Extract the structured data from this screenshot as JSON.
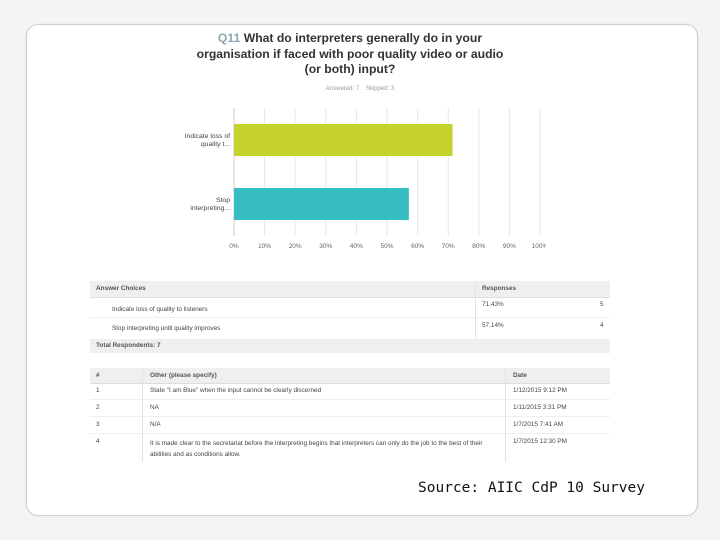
{
  "question": {
    "number": "Q11",
    "text": "What do interpreters generally do in your organisation if faced with poor quality video or audio (or both) input?",
    "answered": "Answered: 7",
    "skipped": "Skipped: 3"
  },
  "chart_data": {
    "type": "bar",
    "orientation": "horizontal",
    "categories": [
      "Indicate loss of quality t...",
      "Stop interpreting..."
    ],
    "values": [
      71.43,
      57.14
    ],
    "colors": [
      "#c6d22f",
      "#36bdc2"
    ],
    "xlim": [
      0,
      100
    ],
    "xticks": [
      "0%",
      "10%",
      "20%",
      "30%",
      "40%",
      "50%",
      "60%",
      "70%",
      "80%",
      "90%",
      "100%"
    ],
    "grid": true
  },
  "answers_table": {
    "headers": [
      "Answer Choices",
      "Responses"
    ],
    "rows": [
      {
        "choice": "Indicate loss of quality to listeners",
        "percent": "71.43%",
        "count": "5"
      },
      {
        "choice": "Stop interpreting until quality improves",
        "percent": "57.14%",
        "count": "4"
      }
    ],
    "total_label": "Total Respondents: 7"
  },
  "other_table": {
    "headers": [
      "#",
      "Other (please specify)",
      "Date"
    ],
    "rows": [
      {
        "num": "1",
        "text": "State \"I am Blue\" when the input cannot be clearly discerned",
        "date": "1/12/2015 9:12 PM"
      },
      {
        "num": "2",
        "text": "NA",
        "date": "1/11/2015 3:31 PM"
      },
      {
        "num": "3",
        "text": "N/A",
        "date": "1/7/2015 7:41 AM"
      },
      {
        "num": "4",
        "text": "It is made clear to the secretariat before the interpreting begins that interpreters can only do the job to the best of their abilities and as conditions allow.",
        "date": "1/7/2015 12:30 PM"
      }
    ]
  },
  "source": "Source: AIIC CdP 10 Survey"
}
